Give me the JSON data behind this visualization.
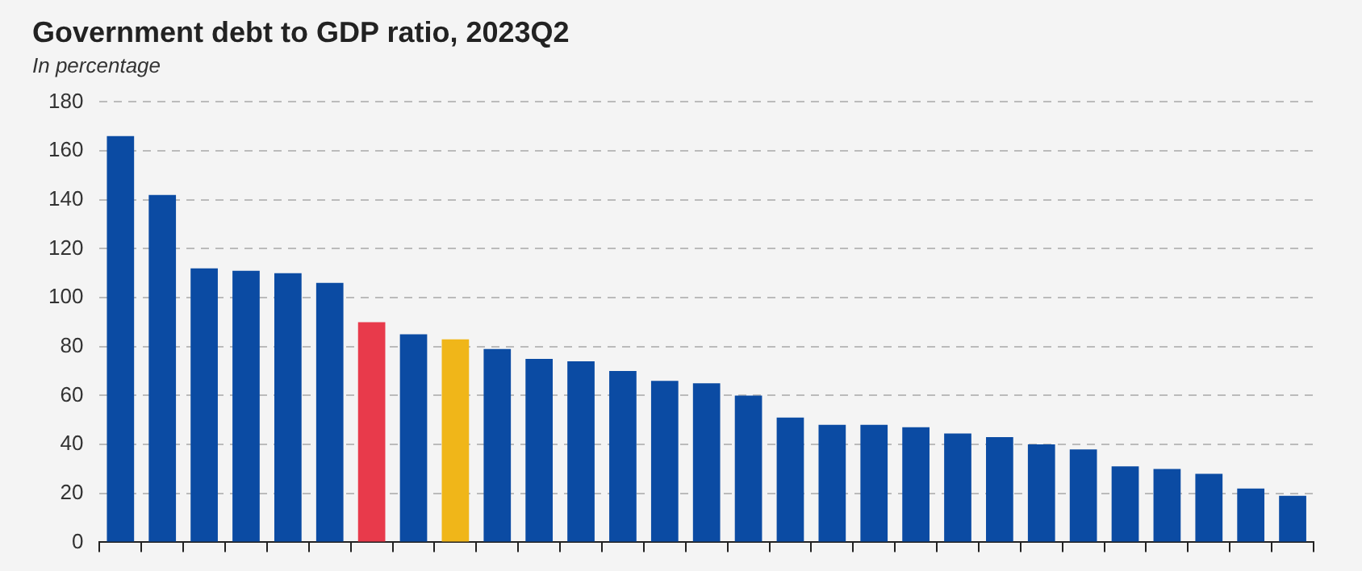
{
  "chart_data": {
    "type": "bar",
    "title": "Government debt to GDP ratio, 2023Q2",
    "subtitle": "In percentage",
    "categories": [
      null,
      null,
      null,
      null,
      null,
      null,
      null,
      null,
      null,
      null,
      null,
      null,
      null,
      null,
      null,
      null,
      null,
      null,
      null,
      null,
      null,
      null,
      null,
      null,
      null,
      null,
      null,
      null,
      null
    ],
    "values": [
      166,
      142,
      112,
      111,
      110,
      106,
      90,
      85,
      83,
      79,
      75,
      74,
      70,
      66,
      65,
      60,
      51,
      48,
      48,
      47,
      44.5,
      43,
      40,
      38,
      31,
      30,
      28,
      22,
      19
    ],
    "colors": [
      "#0b4ba3",
      "#0b4ba3",
      "#0b4ba3",
      "#0b4ba3",
      "#0b4ba3",
      "#0b4ba3",
      "#e83a4b",
      "#0b4ba3",
      "#f0b619",
      "#0b4ba3",
      "#0b4ba3",
      "#0b4ba3",
      "#0b4ba3",
      "#0b4ba3",
      "#0b4ba3",
      "#0b4ba3",
      "#0b4ba3",
      "#0b4ba3",
      "#0b4ba3",
      "#0b4ba3",
      "#0b4ba3",
      "#0b4ba3",
      "#0b4ba3",
      "#0b4ba3",
      "#0b4ba3",
      "#0b4ba3",
      "#0b4ba3",
      "#0b4ba3",
      "#0b4ba3"
    ],
    "ylim": [
      0,
      180
    ],
    "yticks": [
      0,
      20,
      40,
      60,
      80,
      100,
      120,
      140,
      160,
      180
    ],
    "grid": "y",
    "tick_labels": "y"
  }
}
